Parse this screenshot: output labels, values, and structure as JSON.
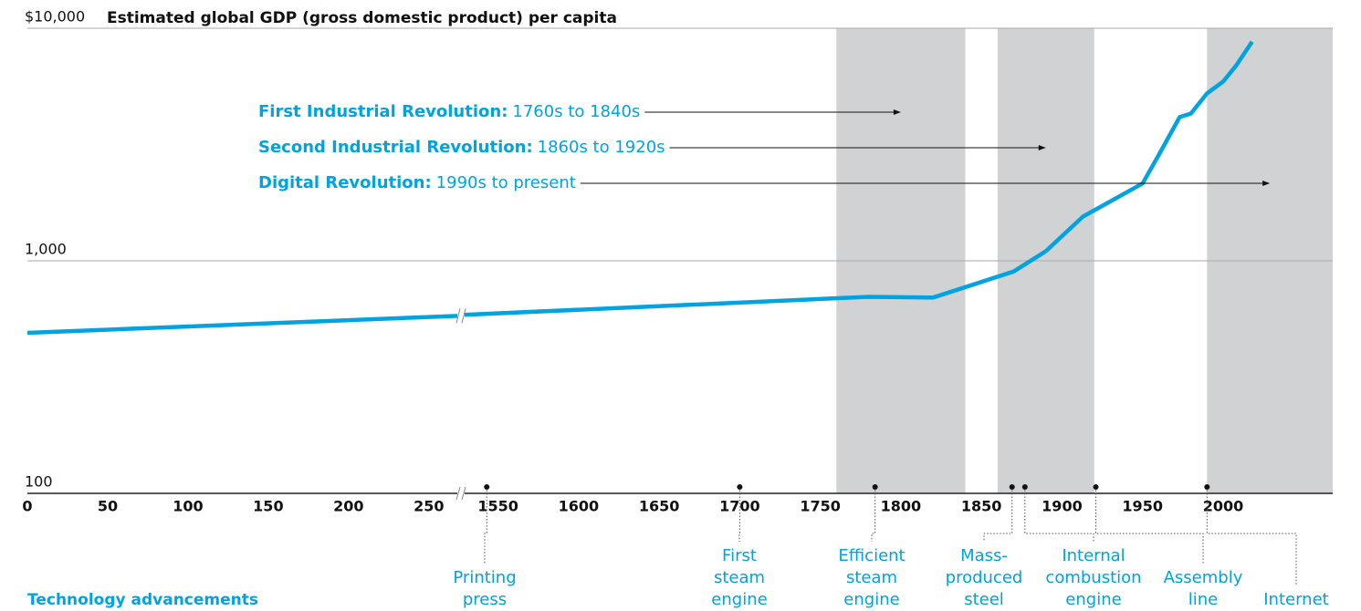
{
  "chart_data": {
    "type": "line",
    "title": "Estimated global GDP (gross domestic product) per capita",
    "log_y": true,
    "ylim": [
      100,
      10000
    ],
    "yticks": [
      {
        "value": 100,
        "label": "100"
      },
      {
        "value": 1000,
        "label": "1,000"
      },
      {
        "value": 10000,
        "label": "$10,000"
      }
    ],
    "x_segments": [
      [
        0,
        270
      ],
      [
        1527,
        2068
      ]
    ],
    "xticks": [
      0,
      50,
      100,
      150,
      200,
      250,
      1550,
      1600,
      1650,
      1700,
      1750,
      1800,
      1850,
      1900,
      1950,
      2000
    ],
    "color": "#00a3e0",
    "x": [
      0,
      270,
      1527,
      1780,
      1820,
      1870,
      1890,
      1913,
      1950,
      1960,
      1973,
      1980,
      1990,
      2000,
      2008,
      2018
    ],
    "values": [
      490,
      580,
      585,
      700,
      695,
      900,
      1100,
      1550,
      2150,
      2850,
      4150,
      4300,
      5250,
      5900,
      6900,
      8750
    ],
    "band_color": "#d1d2d4",
    "bands": [
      {
        "name": "First Industrial Revolution:",
        "period": "1760s to 1840s",
        "range": [
          1760,
          1840
        ]
      },
      {
        "name": "Second Industrial Revolution:",
        "period": "1860s to 1920s",
        "range": [
          1860,
          1920
        ]
      },
      {
        "name": "Digital Revolution:",
        "period": "1990s to present",
        "range": [
          1990,
          2068
        ]
      }
    ],
    "events_title": "Technology advancements",
    "events": [
      {
        "year": 1543,
        "label": [
          "Printing",
          "press"
        ]
      },
      {
        "year": 1700,
        "label": [
          "First",
          "steam",
          "engine"
        ]
      },
      {
        "year": 1784,
        "label": [
          "Efficient",
          "steam",
          "engine"
        ]
      },
      {
        "year": 1869,
        "label": [
          "Mass-",
          "produced",
          "steel"
        ]
      },
      {
        "year": 1877,
        "label": [
          "Internal",
          "combustion",
          "engine"
        ]
      },
      {
        "year": 1921,
        "label": [
          "Assembly",
          "line"
        ]
      },
      {
        "year": 1990,
        "label": [
          "Internet"
        ]
      }
    ]
  }
}
